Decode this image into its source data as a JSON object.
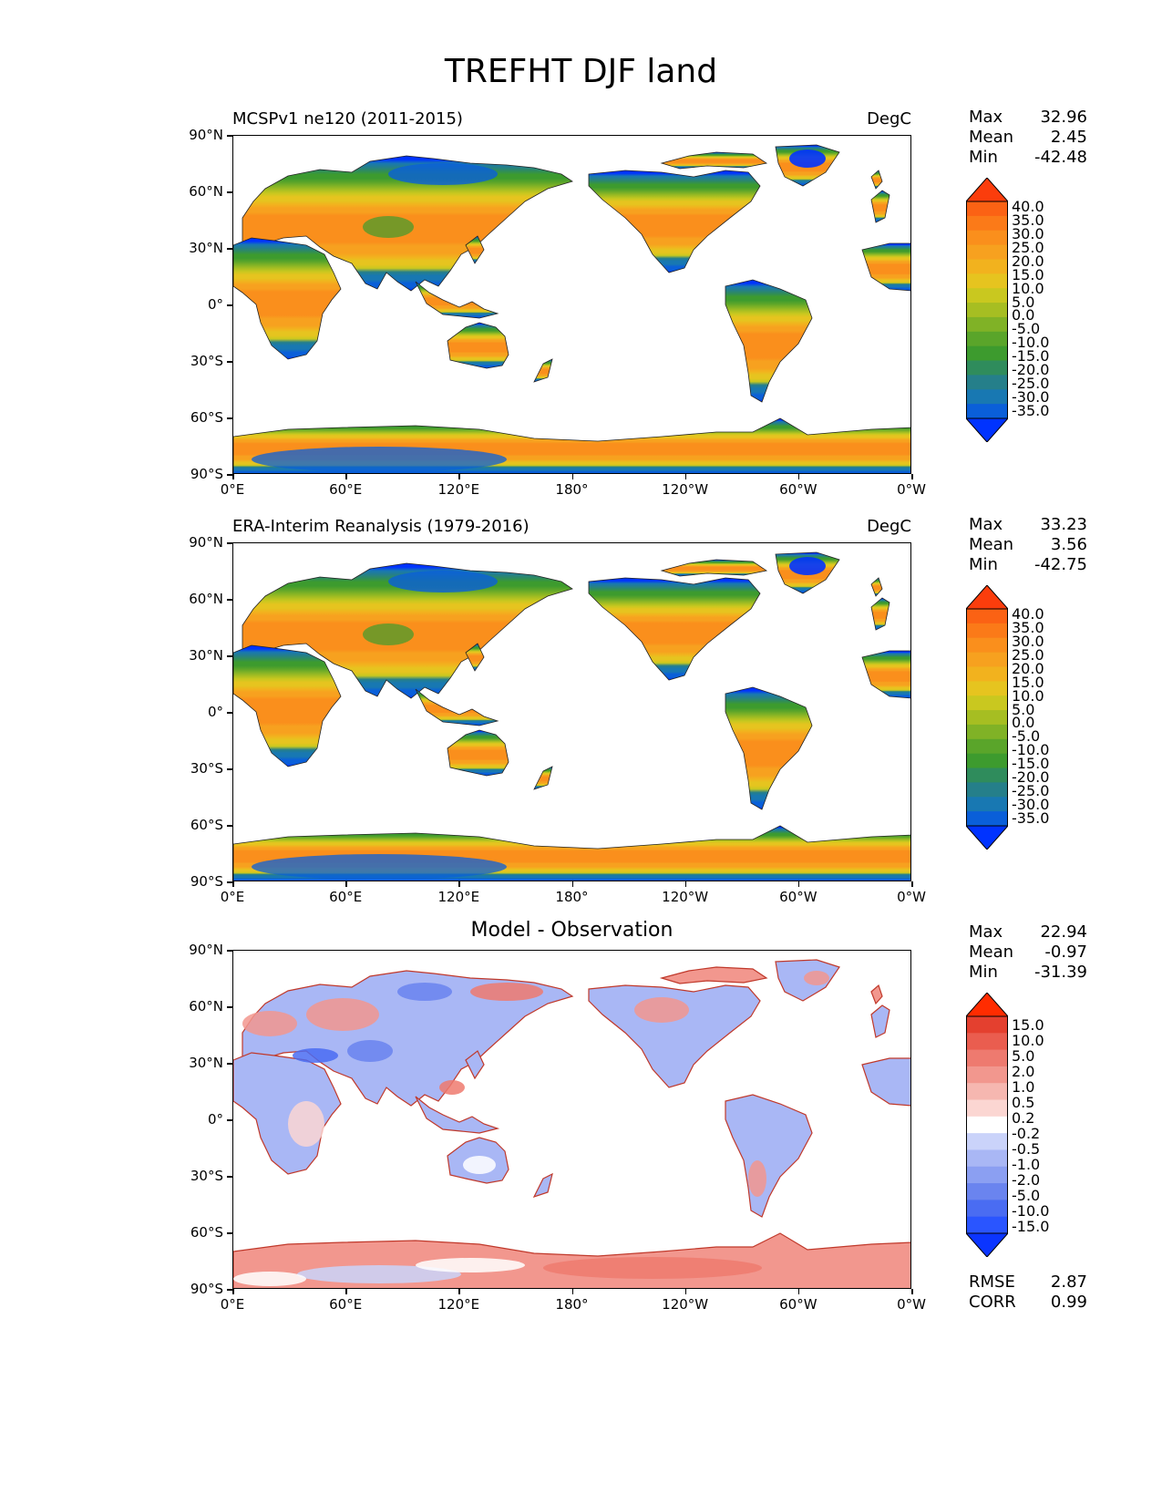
{
  "title": "TREFHT DJF land",
  "lat_ticks": [
    "90°N",
    "60°N",
    "30°N",
    "0°",
    "30°S",
    "60°S",
    "90°S"
  ],
  "lon_ticks": [
    "0°E",
    "60°E",
    "120°E",
    "180°",
    "120°W",
    "60°W",
    "0°W"
  ],
  "panels": [
    {
      "title": "MCSPv1 ne120 (2011-2015)",
      "units": "DegC",
      "stats": {
        "max_label": "Max",
        "max": "32.96",
        "mean_label": "Mean",
        "mean": "2.45",
        "min_label": "Min",
        "min": "-42.48"
      },
      "colormap": "temperature",
      "colorbar_labels": [
        "40.0",
        "35.0",
        "30.0",
        "25.0",
        "20.0",
        "15.0",
        "10.0",
        "5.0",
        "0.0",
        "-5.0",
        "-10.0",
        "-15.0",
        "-20.0",
        "-25.0",
        "-30.0",
        "-35.0"
      ]
    },
    {
      "title": "ERA-Interim Reanalysis (1979-2016)",
      "units": "DegC",
      "stats": {
        "max_label": "Max",
        "max": "33.23",
        "mean_label": "Mean",
        "mean": "3.56",
        "min_label": "Min",
        "min": "-42.75"
      },
      "colormap": "temperature",
      "colorbar_labels": [
        "40.0",
        "35.0",
        "30.0",
        "25.0",
        "20.0",
        "15.0",
        "10.0",
        "5.0",
        "0.0",
        "-5.0",
        "-10.0",
        "-15.0",
        "-20.0",
        "-25.0",
        "-30.0",
        "-35.0"
      ]
    },
    {
      "title": "Model - Observation",
      "units": "",
      "stats": {
        "max_label": "Max",
        "max": "22.94",
        "mean_label": "Mean",
        "mean": "-0.97",
        "min_label": "Min",
        "min": "-31.39"
      },
      "colormap": "difference",
      "colorbar_labels": [
        "15.0",
        "10.0",
        "5.0",
        "2.0",
        "1.0",
        "0.5",
        "0.2",
        "-0.2",
        "-0.5",
        "-1.0",
        "-2.0",
        "-5.0",
        "-10.0",
        "-15.0"
      ],
      "footer": {
        "rmse_label": "RMSE",
        "rmse": "2.87",
        "corr_label": "CORR",
        "corr": "0.99"
      }
    }
  ],
  "colors": {
    "temperature": [
      "#0033ff",
      "#0a5fd9",
      "#1878b2",
      "#257f8a",
      "#2f8c5c",
      "#3d9b2e",
      "#5aa52a",
      "#80b226",
      "#a6be22",
      "#c9c81f",
      "#e6c41f",
      "#f2b21e",
      "#f7a11f",
      "#fa8f1c",
      "#fb7a18",
      "#fb6214",
      "#fb3d0c"
    ],
    "difference": [
      "#0b35ff",
      "#2a55ff",
      "#4a6cf2",
      "#6a84ef",
      "#8b9ff2",
      "#a9b7f5",
      "#cad3fa",
      "#ffffff",
      "#fbd6d2",
      "#f6b7b0",
      "#f2978e",
      "#ee7a6f",
      "#ea5d4f",
      "#e4402f",
      "#ff2c00"
    ]
  }
}
